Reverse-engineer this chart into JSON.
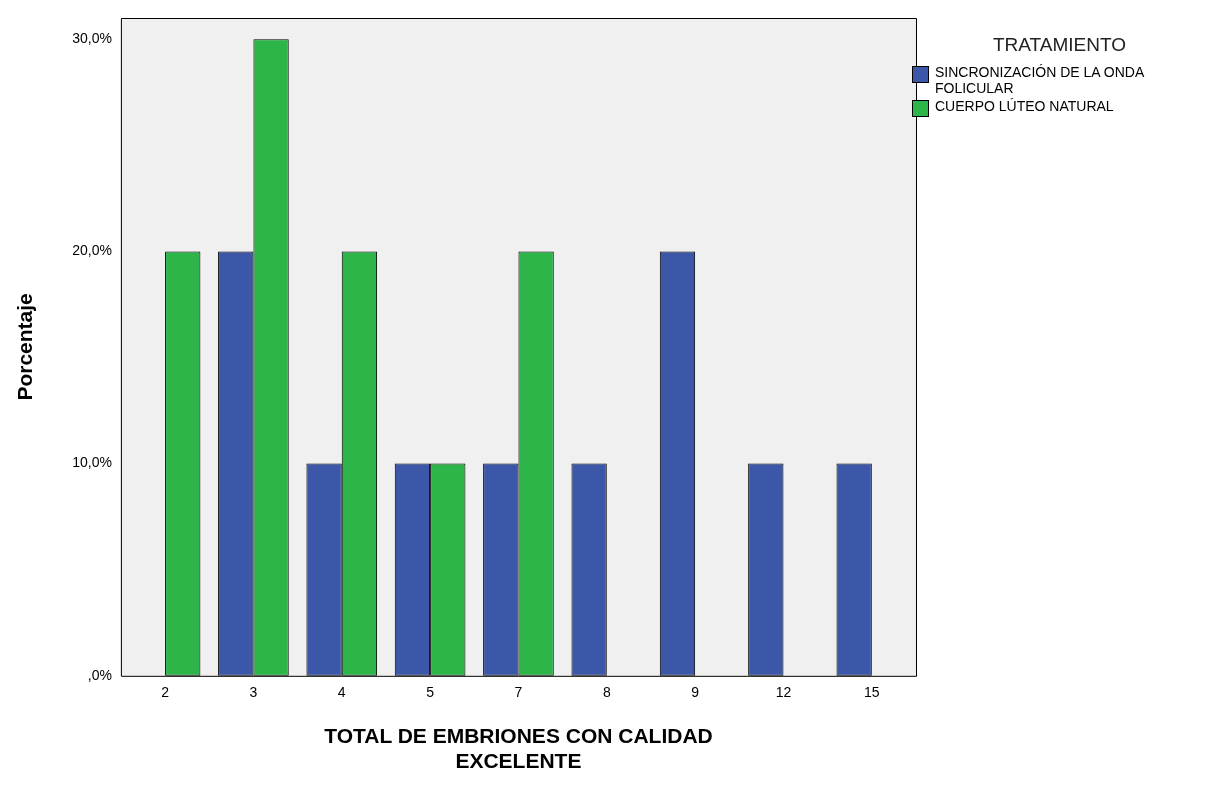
{
  "chart_data": {
    "type": "bar",
    "xlabel": "TOTAL DE EMBRIONES CON CALIDAD EXCELENTE",
    "ylabel": "Porcentaje",
    "legend_title": "TRATAMIENTO",
    "categories": [
      "2",
      "3",
      "4",
      "5",
      "7",
      "8",
      "9",
      "12",
      "15"
    ],
    "series": [
      {
        "name": "SINCRONIZACIÓN DE LA ONDA FOLICULAR",
        "color": "#3c56a8",
        "values": [
          0,
          20,
          10,
          10,
          10,
          10,
          20,
          10,
          10
        ]
      },
      {
        "name": "CUERPO LÚTEO NATURAL",
        "color": "#2eb54a",
        "values": [
          20,
          30,
          20,
          10,
          20,
          0,
          0,
          0,
          0
        ]
      }
    ],
    "ylim": [
      0,
      31
    ],
    "yticks": [
      {
        "value": 0,
        "label": ",0%"
      },
      {
        "value": 10,
        "label": "10,0%"
      },
      {
        "value": 20,
        "label": "20,0%"
      },
      {
        "value": 30,
        "label": "30,0%"
      }
    ],
    "grid": false,
    "legend": "top right"
  }
}
